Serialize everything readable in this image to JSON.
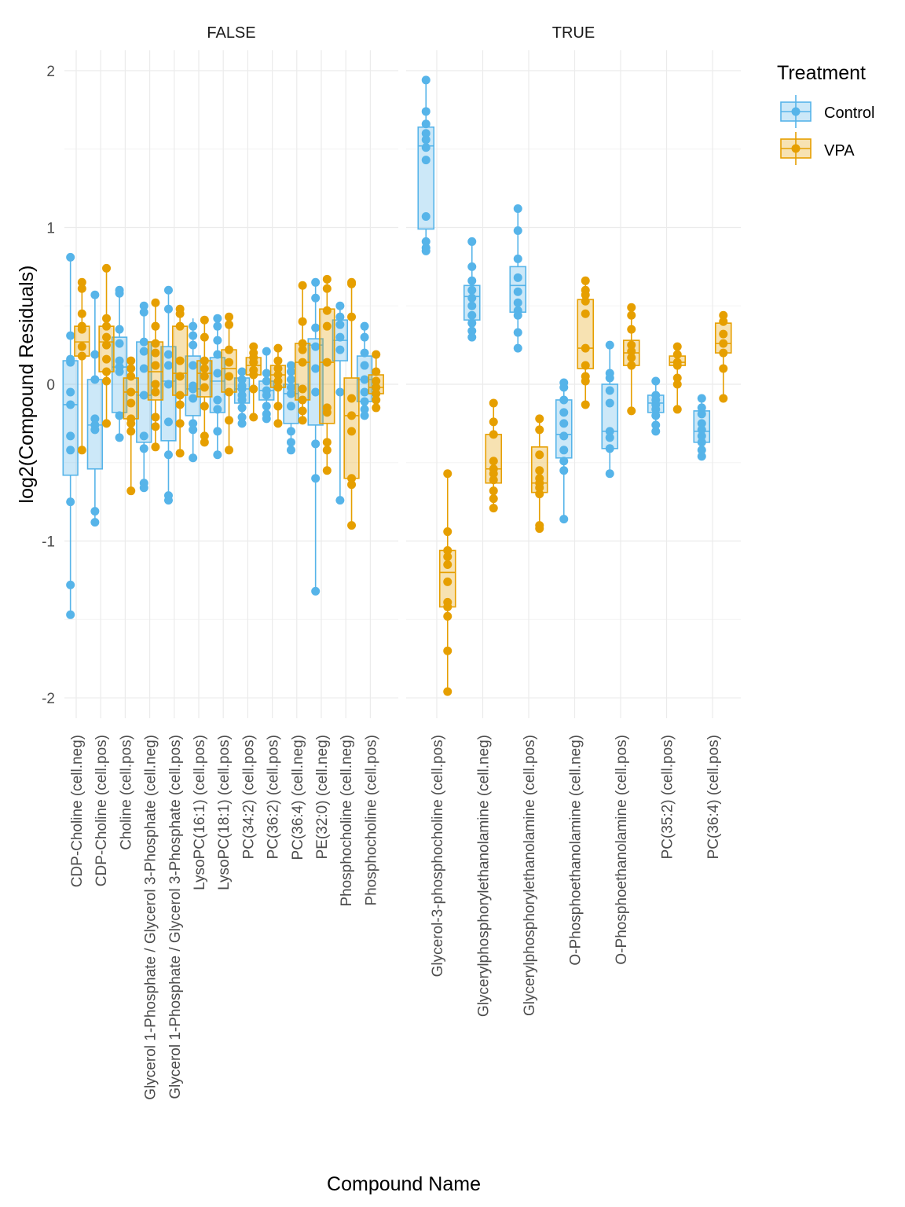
{
  "colors": {
    "Control": "#56b4e9",
    "VPA": "#e69f00",
    "grid_major": "#ebebeb",
    "grid_minor": "#f4f4f4"
  },
  "chart_data": {
    "type": "box",
    "ylabel": "log2(Compound Residuals)",
    "xlabel": "Compound Name",
    "ylim": [
      -2.13,
      2.13
    ],
    "yticks": [
      -2,
      -1,
      0,
      1,
      2
    ],
    "ytick_labels": [
      "-2",
      "-1",
      "0",
      "1",
      "2"
    ],
    "grid": true,
    "legend": {
      "title": "Treatment",
      "position": "right",
      "entries": [
        "Control",
        "VPA"
      ]
    },
    "panels": [
      {
        "label": "FALSE",
        "categories": [
          "CDP-Choline (cell.neg)",
          "CDP-Choline (cell.pos)",
          "Choline (cell.pos)",
          "Glycerol 1-Phosphate / Glycerol 3-Phosphate (cell.neg)",
          "Glycerol 1-Phosphate / Glycerol 3-Phosphate (cell.pos)",
          "LysoPC(16:1) (cell.pos)",
          "LysoPC(18:1) (cell.pos)",
          "PC(34:2) (cell.pos)",
          "PC(36:2) (cell.pos)",
          "PC(36:4) (cell.neg)",
          "PE(32:0) (cell.neg)",
          "Phosphocholine (cell.neg)",
          "Phosphocholine (cell.pos)"
        ],
        "series": [
          {
            "name": "Control",
            "boxes": [
              {
                "min": -1.47,
                "q1": -0.58,
                "median": -0.13,
                "q3": 0.15,
                "max": 0.81
              },
              {
                "min": -0.88,
                "q1": -0.54,
                "median": -0.26,
                "q3": 0.03,
                "max": 0.57
              },
              {
                "min": -0.34,
                "q1": -0.18,
                "median": 0.11,
                "q3": 0.3,
                "max": 0.6
              },
              {
                "min": -0.66,
                "q1": -0.37,
                "median": -0.07,
                "q3": 0.27,
                "max": 0.5
              },
              {
                "min": -0.74,
                "q1": -0.36,
                "median": 0.02,
                "q3": 0.24,
                "max": 0.6
              },
              {
                "min": -0.47,
                "q1": -0.2,
                "median": -0.03,
                "q3": 0.18,
                "max": 0.42
              },
              {
                "min": -0.45,
                "q1": -0.18,
                "median": 0.02,
                "q3": 0.17,
                "max": 0.42
              },
              {
                "min": -0.25,
                "q1": -0.12,
                "median": -0.03,
                "q3": 0.04,
                "max": 0.08
              },
              {
                "min": -0.22,
                "q1": -0.1,
                "median": -0.04,
                "q3": 0.02,
                "max": 0.21
              },
              {
                "min": -0.42,
                "q1": -0.25,
                "median": -0.06,
                "q3": 0.0,
                "max": 0.12
              },
              {
                "min": -1.32,
                "q1": -0.26,
                "median": 0.25,
                "q3": 0.29,
                "max": 0.65
              },
              {
                "min": -0.74,
                "q1": 0.15,
                "median": 0.28,
                "q3": 0.41,
                "max": 0.5
              },
              {
                "min": -0.2,
                "q1": -0.11,
                "median": 0.03,
                "q3": 0.18,
                "max": 0.37
              }
            ],
            "points": [
              [
                0.81,
                0.31,
                0.16,
                0.14,
                -0.05,
                -0.13,
                -0.33,
                -0.42,
                -0.75,
                -1.28,
                -1.47
              ],
              [
                0.57,
                0.19,
                0.03,
                -0.22,
                -0.26,
                -0.29,
                -0.81,
                -0.88
              ],
              [
                0.6,
                0.58,
                0.35,
                0.26,
                0.15,
                0.11,
                0.08,
                -0.2,
                -0.34
              ],
              [
                0.5,
                0.46,
                0.27,
                0.21,
                0.1,
                -0.07,
                -0.33,
                -0.41,
                -0.63,
                -0.66
              ],
              [
                0.6,
                0.48,
                0.19,
                0.12,
                0.0,
                -0.24,
                -0.45,
                -0.71,
                -0.74
              ],
              [
                0.37,
                0.31,
                0.25,
                0.12,
                -0.01,
                -0.03,
                -0.09,
                -0.25,
                -0.29,
                -0.47
              ],
              [
                0.42,
                0.37,
                0.28,
                0.19,
                0.07,
                -0.1,
                -0.16,
                -0.3,
                -0.45
              ],
              [
                0.08,
                0.03,
                -0.01,
                -0.03,
                -0.07,
                -0.1,
                -0.15,
                -0.21,
                -0.25
              ],
              [
                0.21,
                0.07,
                0.02,
                -0.04,
                -0.07,
                -0.14,
                -0.19,
                -0.22
              ],
              [
                0.12,
                0.08,
                0.03,
                -0.02,
                -0.06,
                -0.14,
                -0.3,
                -0.37,
                -0.42
              ],
              [
                0.65,
                0.55,
                0.36,
                0.24,
                0.1,
                -0.05,
                -0.38,
                -0.6,
                -1.32
              ],
              [
                0.5,
                0.43,
                0.38,
                0.3,
                0.22,
                -0.05,
                -0.74
              ],
              [
                0.37,
                0.3,
                0.2,
                0.12,
                0.03,
                -0.05,
                -0.11,
                -0.16,
                -0.2
              ]
            ]
          },
          {
            "name": "VPA",
            "boxes": [
              {
                "min": -0.42,
                "q1": 0.18,
                "median": 0.27,
                "q3": 0.37,
                "max": 0.65
              },
              {
                "min": -0.25,
                "q1": 0.08,
                "median": 0.27,
                "q3": 0.37,
                "max": 0.74
              },
              {
                "min": -0.68,
                "q1": -0.22,
                "median": -0.05,
                "q3": 0.04,
                "max": 0.15
              },
              {
                "min": -0.4,
                "q1": -0.1,
                "median": 0.08,
                "q3": 0.27,
                "max": 0.52
              },
              {
                "min": -0.44,
                "q1": -0.07,
                "median": 0.07,
                "q3": 0.37,
                "max": 0.48
              },
              {
                "min": -0.37,
                "q1": -0.08,
                "median": 0.07,
                "q3": 0.15,
                "max": 0.41
              },
              {
                "min": -0.42,
                "q1": -0.05,
                "median": 0.1,
                "q3": 0.22,
                "max": 0.43
              },
              {
                "min": -0.21,
                "q1": 0.06,
                "median": 0.12,
                "q3": 0.17,
                "max": 0.24
              },
              {
                "min": -0.25,
                "q1": -0.02,
                "median": 0.06,
                "q3": 0.12,
                "max": 0.23
              },
              {
                "min": -0.23,
                "q1": -0.1,
                "median": 0.14,
                "q3": 0.26,
                "max": 0.63
              },
              {
                "min": -0.55,
                "q1": -0.25,
                "median": 0.14,
                "q3": 0.48,
                "max": 0.67
              },
              {
                "min": -0.9,
                "q1": -0.6,
                "median": -0.2,
                "q3": 0.04,
                "max": 0.65
              },
              {
                "min": -0.15,
                "q1": -0.06,
                "median": -0.02,
                "q3": 0.06,
                "max": 0.19
              }
            ],
            "points": [
              [
                0.65,
                0.61,
                0.45,
                0.37,
                0.35,
                0.24,
                0.18,
                -0.42
              ],
              [
                0.74,
                0.42,
                0.37,
                0.3,
                0.25,
                0.16,
                0.08,
                0.02,
                -0.25
              ],
              [
                0.15,
                0.1,
                0.05,
                -0.05,
                -0.12,
                -0.22,
                -0.25,
                -0.3,
                -0.68
              ],
              [
                0.52,
                0.37,
                0.26,
                0.2,
                0.12,
                0.0,
                -0.05,
                -0.21,
                -0.27,
                -0.4
              ],
              [
                0.48,
                0.45,
                0.37,
                0.15,
                0.05,
                -0.07,
                -0.13,
                -0.25,
                -0.44
              ],
              [
                0.41,
                0.3,
                0.15,
                0.1,
                0.05,
                -0.02,
                -0.14,
                -0.33,
                -0.37
              ],
              [
                0.43,
                0.38,
                0.22,
                0.14,
                0.05,
                -0.05,
                -0.23,
                -0.42
              ],
              [
                0.24,
                0.2,
                0.17,
                0.14,
                0.09,
                0.06,
                -0.03,
                -0.21
              ],
              [
                0.23,
                0.15,
                0.1,
                0.06,
                0.02,
                -0.02,
                -0.14,
                -0.25
              ],
              [
                0.63,
                0.4,
                0.26,
                0.22,
                0.14,
                -0.03,
                -0.1,
                -0.17,
                -0.23
              ],
              [
                0.67,
                0.61,
                0.47,
                0.37,
                0.14,
                -0.15,
                -0.18,
                -0.37,
                -0.42,
                -0.55
              ],
              [
                0.65,
                0.64,
                0.43,
                -0.09,
                -0.2,
                -0.3,
                -0.6,
                -0.64,
                -0.9
              ],
              [
                0.19,
                0.08,
                0.02,
                -0.02,
                -0.06,
                -0.1,
                -0.15
              ]
            ]
          }
        ]
      },
      {
        "label": "TRUE",
        "categories": [
          "Glycerol-3-phosphocholine (cell.pos)",
          "Glycerylphosphorylethanolamine (cell.neg)",
          "Glycerylphosphorylethanolamine (cell.pos)",
          "O-Phosphoethanolamine (cell.neg)",
          "O-Phosphoethanolamine (cell.pos)",
          "PC(35:2) (cell.pos)",
          "PC(36:4) (cell.pos)"
        ],
        "series": [
          {
            "name": "Control",
            "boxes": [
              {
                "min": 0.85,
                "q1": 0.99,
                "median": 1.52,
                "q3": 1.64,
                "max": 1.94
              },
              {
                "min": 0.3,
                "q1": 0.41,
                "median": 0.56,
                "q3": 0.63,
                "max": 0.91
              },
              {
                "min": 0.23,
                "q1": 0.46,
                "median": 0.63,
                "q3": 0.75,
                "max": 1.12
              },
              {
                "min": -0.86,
                "q1": -0.47,
                "median": -0.32,
                "q3": -0.1,
                "max": 0.01
              },
              {
                "min": -0.57,
                "q1": -0.41,
                "median": -0.3,
                "q3": 0.0,
                "max": 0.25
              },
              {
                "min": -0.3,
                "q1": -0.18,
                "median": -0.12,
                "q3": -0.07,
                "max": 0.02
              },
              {
                "min": -0.46,
                "q1": -0.37,
                "median": -0.3,
                "q3": -0.17,
                "max": -0.09
              }
            ],
            "points": [
              [
                1.94,
                1.74,
                1.66,
                1.6,
                1.56,
                1.51,
                1.43,
                1.07,
                0.91,
                0.87,
                0.85
              ],
              [
                0.91,
                0.75,
                0.66,
                0.6,
                0.55,
                0.5,
                0.44,
                0.39,
                0.34,
                0.3
              ],
              [
                1.12,
                0.98,
                0.8,
                0.68,
                0.59,
                0.52,
                0.47,
                0.44,
                0.33,
                0.23
              ],
              [
                0.01,
                -0.02,
                -0.1,
                -0.18,
                -0.25,
                -0.33,
                -0.42,
                -0.49,
                -0.55,
                -0.86
              ],
              [
                0.25,
                0.07,
                0.04,
                -0.04,
                -0.12,
                -0.3,
                -0.34,
                -0.41,
                -0.57
              ],
              [
                0.02,
                -0.07,
                -0.1,
                -0.13,
                -0.16,
                -0.2,
                -0.26,
                -0.3
              ],
              [
                -0.09,
                -0.15,
                -0.19,
                -0.25,
                -0.29,
                -0.33,
                -0.37,
                -0.42,
                -0.46
              ]
            ]
          },
          {
            "name": "VPA",
            "boxes": [
              {
                "min": -1.96,
                "q1": -1.42,
                "median": -1.2,
                "q3": -1.06,
                "max": -0.57
              },
              {
                "min": -0.79,
                "q1": -0.63,
                "median": -0.54,
                "q3": -0.32,
                "max": -0.12
              },
              {
                "min": -0.92,
                "q1": -0.69,
                "median": -0.63,
                "q3": -0.4,
                "max": -0.22
              },
              {
                "min": -0.13,
                "q1": 0.1,
                "median": 0.23,
                "q3": 0.54,
                "max": 0.66
              },
              {
                "min": -0.17,
                "q1": 0.12,
                "median": 0.2,
                "q3": 0.28,
                "max": 0.49
              },
              {
                "min": -0.16,
                "q1": 0.12,
                "median": 0.14,
                "q3": 0.18,
                "max": 0.24
              },
              {
                "min": -0.09,
                "q1": 0.2,
                "median": 0.26,
                "q3": 0.39,
                "max": 0.44
              }
            ],
            "points": [
              [
                -0.57,
                -0.94,
                -1.06,
                -1.1,
                -1.15,
                -1.26,
                -1.39,
                -1.42,
                -1.48,
                -1.7,
                -1.96
              ],
              [
                -0.12,
                -0.24,
                -0.32,
                -0.49,
                -0.54,
                -0.57,
                -0.61,
                -0.68,
                -0.73,
                -0.79
              ],
              [
                -0.22,
                -0.29,
                -0.45,
                -0.55,
                -0.6,
                -0.63,
                -0.66,
                -0.7,
                -0.9,
                -0.92
              ],
              [
                0.66,
                0.6,
                0.57,
                0.53,
                0.45,
                0.23,
                0.12,
                0.05,
                0.02,
                -0.13
              ],
              [
                0.49,
                0.44,
                0.35,
                0.25,
                0.21,
                0.17,
                0.12,
                -0.17
              ],
              [
                0.24,
                0.19,
                0.14,
                0.12,
                0.04,
                0.0,
                -0.16
              ],
              [
                0.44,
                0.4,
                0.32,
                0.26,
                0.2,
                0.1,
                -0.09
              ]
            ]
          }
        ]
      }
    ]
  }
}
